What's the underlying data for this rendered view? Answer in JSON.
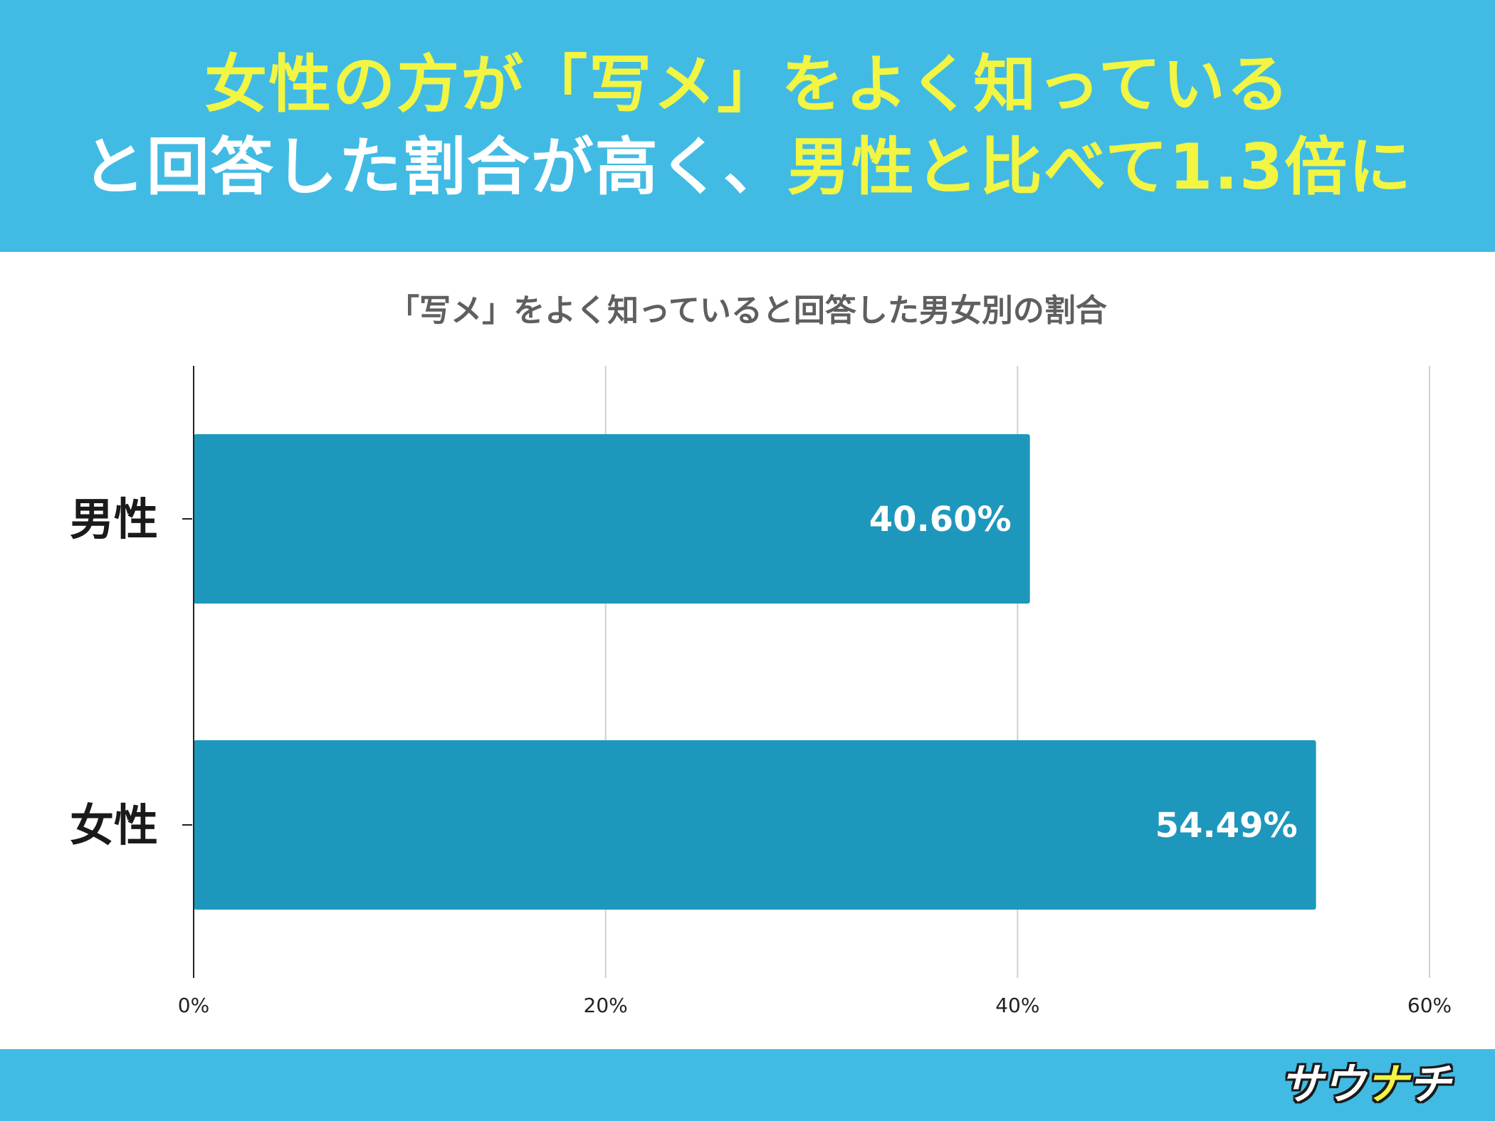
{
  "headline": {
    "line1": "女性の方が「写メ」をよく知っている",
    "line2_prefix": "と回答した割合が高く、",
    "line2_highlight": "男性と比べて1.3倍に"
  },
  "chart_data": {
    "type": "bar",
    "orientation": "horizontal",
    "title": "「写メ」をよく知っていると回答した男女別の割合",
    "categories": [
      "男性",
      "女性"
    ],
    "values": [
      40.6,
      54.49
    ],
    "data_labels": [
      "40.60%",
      "54.49%"
    ],
    "xlim": [
      0,
      60
    ],
    "x_ticks": [
      0,
      20,
      40,
      60
    ],
    "x_tick_labels": [
      "0%",
      "20%",
      "40%",
      "60%"
    ],
    "grid": "vertical",
    "bar_color": "#1e97bd",
    "label_color": "#ffffff"
  },
  "logo": {
    "text_a": "サウ",
    "text_b": "ナ",
    "text_c": "チ"
  },
  "colors": {
    "banner": "#41bbe4",
    "highlight": "#f2f542"
  }
}
